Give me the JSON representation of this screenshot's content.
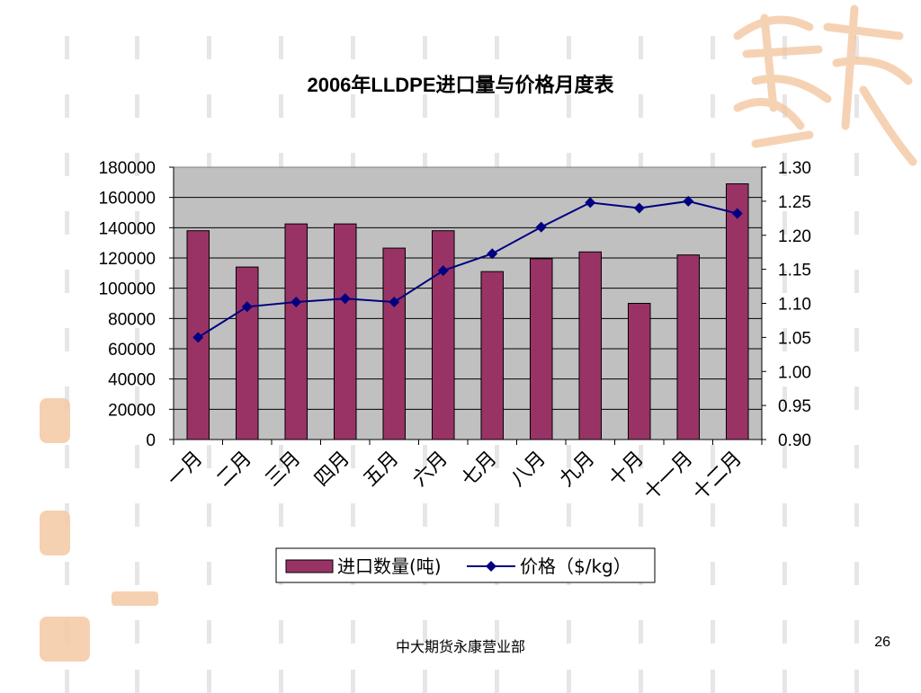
{
  "slide": {
    "footer": "中大期货永康营业部",
    "page_number": "26"
  },
  "chart_data": {
    "type": "bar",
    "title": "2006年LLDPE进口量与价格月度表",
    "categories": [
      "一月",
      "二月",
      "三月",
      "四月",
      "五月",
      "六月",
      "七月",
      "八月",
      "九月",
      "十月",
      "十一月",
      "十二月"
    ],
    "series": [
      {
        "name": "进口数量(吨)",
        "type": "bar",
        "axis": "left",
        "color": "#993366",
        "values": [
          138000,
          114000,
          142500,
          142500,
          126500,
          138000,
          111000,
          119500,
          124000,
          90000,
          122000,
          169000
        ]
      },
      {
        "name": "价格（$/kg）",
        "type": "line",
        "axis": "right",
        "color": "#000080",
        "values": [
          1.05,
          1.095,
          1.102,
          1.107,
          1.102,
          1.148,
          1.173,
          1.212,
          1.248,
          1.24,
          1.25,
          1.232
        ]
      }
    ],
    "y_left": {
      "min": 0,
      "max": 180000,
      "ticks": [
        "0",
        "20000",
        "40000",
        "60000",
        "80000",
        "100000",
        "120000",
        "140000",
        "160000",
        "180000"
      ]
    },
    "y_right": {
      "min": 0.9,
      "max": 1.3,
      "ticks": [
        "0.90",
        "0.95",
        "1.00",
        "1.05",
        "1.10",
        "1.15",
        "1.20",
        "1.25",
        "1.30"
      ]
    },
    "plot_background": "#c0c0c0",
    "grid": true,
    "legend_position": "bottom"
  }
}
